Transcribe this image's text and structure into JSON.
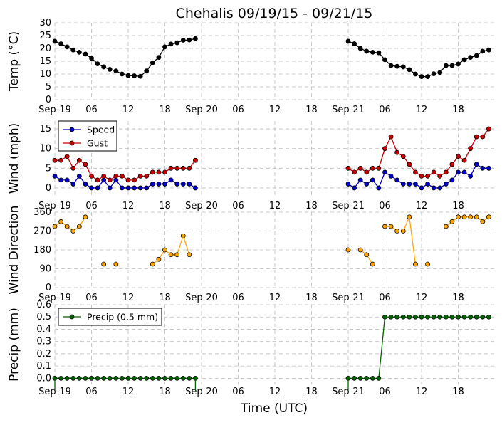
{
  "title": "Chehalis 09/19/15 - 09/21/15",
  "xlabel": "Time (UTC)",
  "x_tick_labels": [
    "Sep-19",
    "06",
    "12",
    "18",
    "Sep-20",
    "06",
    "12",
    "18",
    "Sep-21",
    "06",
    "12",
    "18"
  ],
  "colors": {
    "temp": "#000000",
    "speed": "#0000cc",
    "gust": "#cc0000",
    "direction": "#ffa500",
    "precip": "#006400",
    "grid": "#bbbbbb"
  },
  "chart_data": [
    {
      "type": "line",
      "ylabel": "Temp (°C)",
      "ylim": [
        0,
        30
      ],
      "yticks": [
        "0",
        "5",
        "10",
        "15",
        "20",
        "25",
        "30"
      ],
      "x_unit": "hours since Sep-19 00 UTC",
      "xlim": [
        0,
        72
      ],
      "grid": true,
      "series": [
        {
          "color": "#000000",
          "x": [
            0,
            1,
            2,
            3,
            4,
            5,
            6,
            7,
            8,
            9,
            10,
            11,
            12,
            13,
            14,
            15,
            16,
            17,
            18,
            19,
            20,
            21,
            22,
            23,
            48,
            49,
            50,
            51,
            52,
            53,
            54,
            55,
            56,
            57,
            58,
            59,
            60,
            61,
            62,
            63,
            64,
            65,
            66,
            67,
            68,
            69,
            70,
            71
          ],
          "y": [
            22.8,
            21.8,
            20.6,
            19.4,
            18.5,
            17.8,
            16.2,
            14.0,
            12.8,
            11.8,
            11.2,
            10.0,
            9.4,
            9.3,
            9.1,
            11.2,
            14.4,
            16.5,
            20.6,
            21.7,
            22.2,
            23.2,
            23.3,
            23.8,
            22.8,
            21.8,
            20.0,
            18.9,
            18.5,
            18.3,
            15.6,
            13.3,
            13.0,
            12.8,
            11.7,
            10.0,
            9.0,
            9.0,
            10.1,
            10.6,
            13.3,
            13.3,
            13.9,
            15.6,
            16.5,
            17.2,
            18.9,
            19.4
          ]
        }
      ]
    },
    {
      "type": "line",
      "ylabel": "Wind (mph)",
      "ylim": [
        -2,
        17
      ],
      "yticks": [
        "0",
        "5",
        "10",
        "15"
      ],
      "xlim": [
        0,
        72
      ],
      "grid": true,
      "legend_placement": "top-left",
      "series": [
        {
          "name": "Speed",
          "color": "#0000cc",
          "x": [
            0,
            1,
            2,
            3,
            4,
            5,
            6,
            7,
            8,
            9,
            10,
            11,
            12,
            13,
            14,
            15,
            16,
            17,
            18,
            19,
            20,
            21,
            22,
            23,
            48,
            49,
            50,
            51,
            52,
            53,
            54,
            55,
            56,
            57,
            58,
            59,
            60,
            61,
            62,
            63,
            64,
            65,
            66,
            67,
            68,
            69,
            70,
            71
          ],
          "y": [
            3,
            2,
            2,
            1,
            3,
            1,
            0,
            0,
            2,
            0,
            2,
            0,
            0,
            0,
            0,
            0,
            1,
            1,
            1,
            2,
            1,
            1,
            1,
            0,
            1,
            0,
            2,
            1,
            2,
            0,
            4,
            3,
            2,
            1,
            1,
            1,
            0,
            1,
            0,
            0,
            1,
            2,
            4,
            4,
            3,
            6,
            5,
            5
          ]
        },
        {
          "name": "Gust",
          "color": "#cc0000",
          "x": [
            0,
            1,
            2,
            3,
            4,
            5,
            6,
            7,
            8,
            9,
            10,
            11,
            12,
            13,
            14,
            15,
            16,
            17,
            18,
            19,
            20,
            21,
            22,
            23,
            48,
            49,
            50,
            51,
            52,
            53,
            54,
            55,
            56,
            57,
            58,
            59,
            60,
            61,
            62,
            63,
            64,
            65,
            66,
            67,
            68,
            69,
            70,
            71
          ],
          "y": [
            7,
            7,
            8,
            5,
            7,
            6,
            3,
            2,
            3,
            2,
            3,
            3,
            2,
            2,
            3,
            3,
            4,
            4,
            4,
            5,
            5,
            5,
            5,
            7,
            5,
            4,
            5,
            4,
            5,
            5,
            10,
            13,
            9,
            8,
            6,
            4,
            3,
            3,
            4,
            3,
            4,
            6,
            8,
            7,
            10,
            13,
            13,
            15
          ]
        }
      ]
    },
    {
      "type": "scatter",
      "ylabel": "Wind Direction",
      "ylim": [
        0,
        360
      ],
      "yticks": [
        "0",
        "90",
        "180",
        "270",
        "360"
      ],
      "xlim": [
        0,
        72
      ],
      "grid": true,
      "series": [
        {
          "color": "#ffa500",
          "segments": [
            {
              "x": [
                0,
                1,
                2,
                3,
                4,
                5
              ],
              "y": [
                292,
                315,
                292,
                270,
                292,
                337
              ]
            },
            {
              "x": [
                8
              ],
              "y": [
                112
              ]
            },
            {
              "x": [
                10
              ],
              "y": [
                112
              ]
            },
            {
              "x": [
                16,
                17,
                18,
                19,
                20,
                21,
                22
              ],
              "y": [
                112,
                135,
                180,
                157,
                157,
                247,
                157
              ]
            },
            {
              "x": [
                48
              ],
              "y": [
                180
              ]
            },
            {
              "x": [
                50,
                51,
                52
              ],
              "y": [
                180,
                157,
                112
              ]
            },
            {
              "x": [
                54,
                55,
                56,
                57,
                58,
                59
              ],
              "y": [
                292,
                292,
                270,
                270,
                337,
                112
              ]
            },
            {
              "x": [
                61
              ],
              "y": [
                112
              ]
            },
            {
              "x": [
                64,
                65,
                66,
                67,
                68,
                69,
                70,
                71
              ],
              "y": [
                292,
                315,
                337,
                337,
                337,
                337,
                315,
                337
              ]
            }
          ]
        }
      ]
    },
    {
      "type": "line",
      "ylabel": "Precip (mm)",
      "ylim": [
        -0.05,
        0.6
      ],
      "yticks": [
        "0.0",
        "0.1",
        "0.2",
        "0.3",
        "0.4",
        "0.5",
        "0.6"
      ],
      "xlim": [
        0,
        72
      ],
      "grid": true,
      "legend_placement": "top-left",
      "series": [
        {
          "name": "Precip (0.5 mm)",
          "color": "#006400",
          "x": [
            0,
            1,
            2,
            3,
            4,
            5,
            6,
            7,
            8,
            9,
            10,
            11,
            12,
            13,
            14,
            15,
            16,
            17,
            18,
            19,
            20,
            21,
            22,
            23,
            48,
            49,
            50,
            51,
            52,
            53,
            54,
            55,
            56,
            57,
            58,
            59,
            60,
            61,
            62,
            63,
            64,
            65,
            66,
            67,
            68,
            69,
            70,
            71
          ],
          "y": [
            0,
            0,
            0,
            0,
            0,
            0,
            0,
            0,
            0,
            0,
            0,
            0,
            0,
            0,
            0,
            0,
            0,
            0,
            0,
            0,
            0,
            0,
            0,
            0,
            0,
            0,
            0,
            0,
            0,
            0,
            0.5,
            0.5,
            0.5,
            0.5,
            0.5,
            0.5,
            0.5,
            0.5,
            0.5,
            0.5,
            0.5,
            0.5,
            0.5,
            0.5,
            0.5,
            0.5,
            0.5,
            0.5
          ]
        }
      ]
    }
  ]
}
